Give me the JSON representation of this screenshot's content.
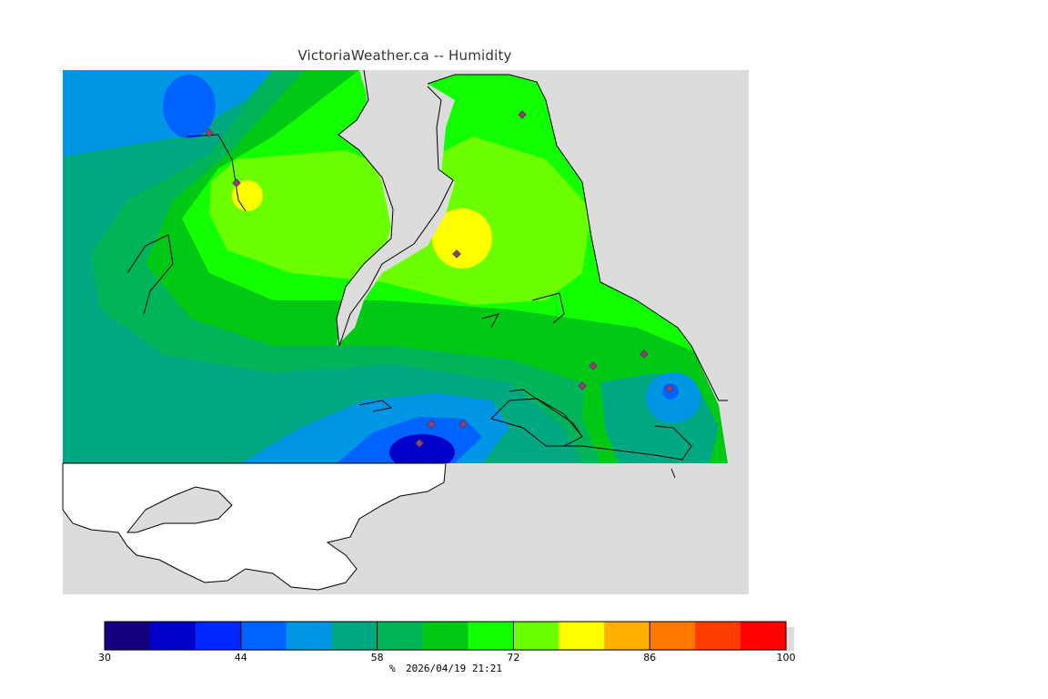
{
  "title": "VictoriaWeather.ca -- Humidity",
  "colorbar": {
    "unit": "%",
    "timestamp": "2026/04/19 21:21",
    "min": 30,
    "max": 100,
    "ticks": [
      "30",
      "44",
      "58",
      "72",
      "86",
      "100"
    ],
    "bands": [
      "#13007d",
      "#0000c8",
      "#0027ff",
      "#0063ff",
      "#0096e6",
      "#00a882",
      "#00b45a",
      "#00c814",
      "#11ff00",
      "#6bff00",
      "#ffff00",
      "#ffb000",
      "#ff7800",
      "#ff3c00",
      "#ff0000"
    ]
  },
  "colors": {
    "land_neighbor": "#ffffff",
    "water": "#dcdcdc",
    "station_marker": "#9a3c78"
  }
}
